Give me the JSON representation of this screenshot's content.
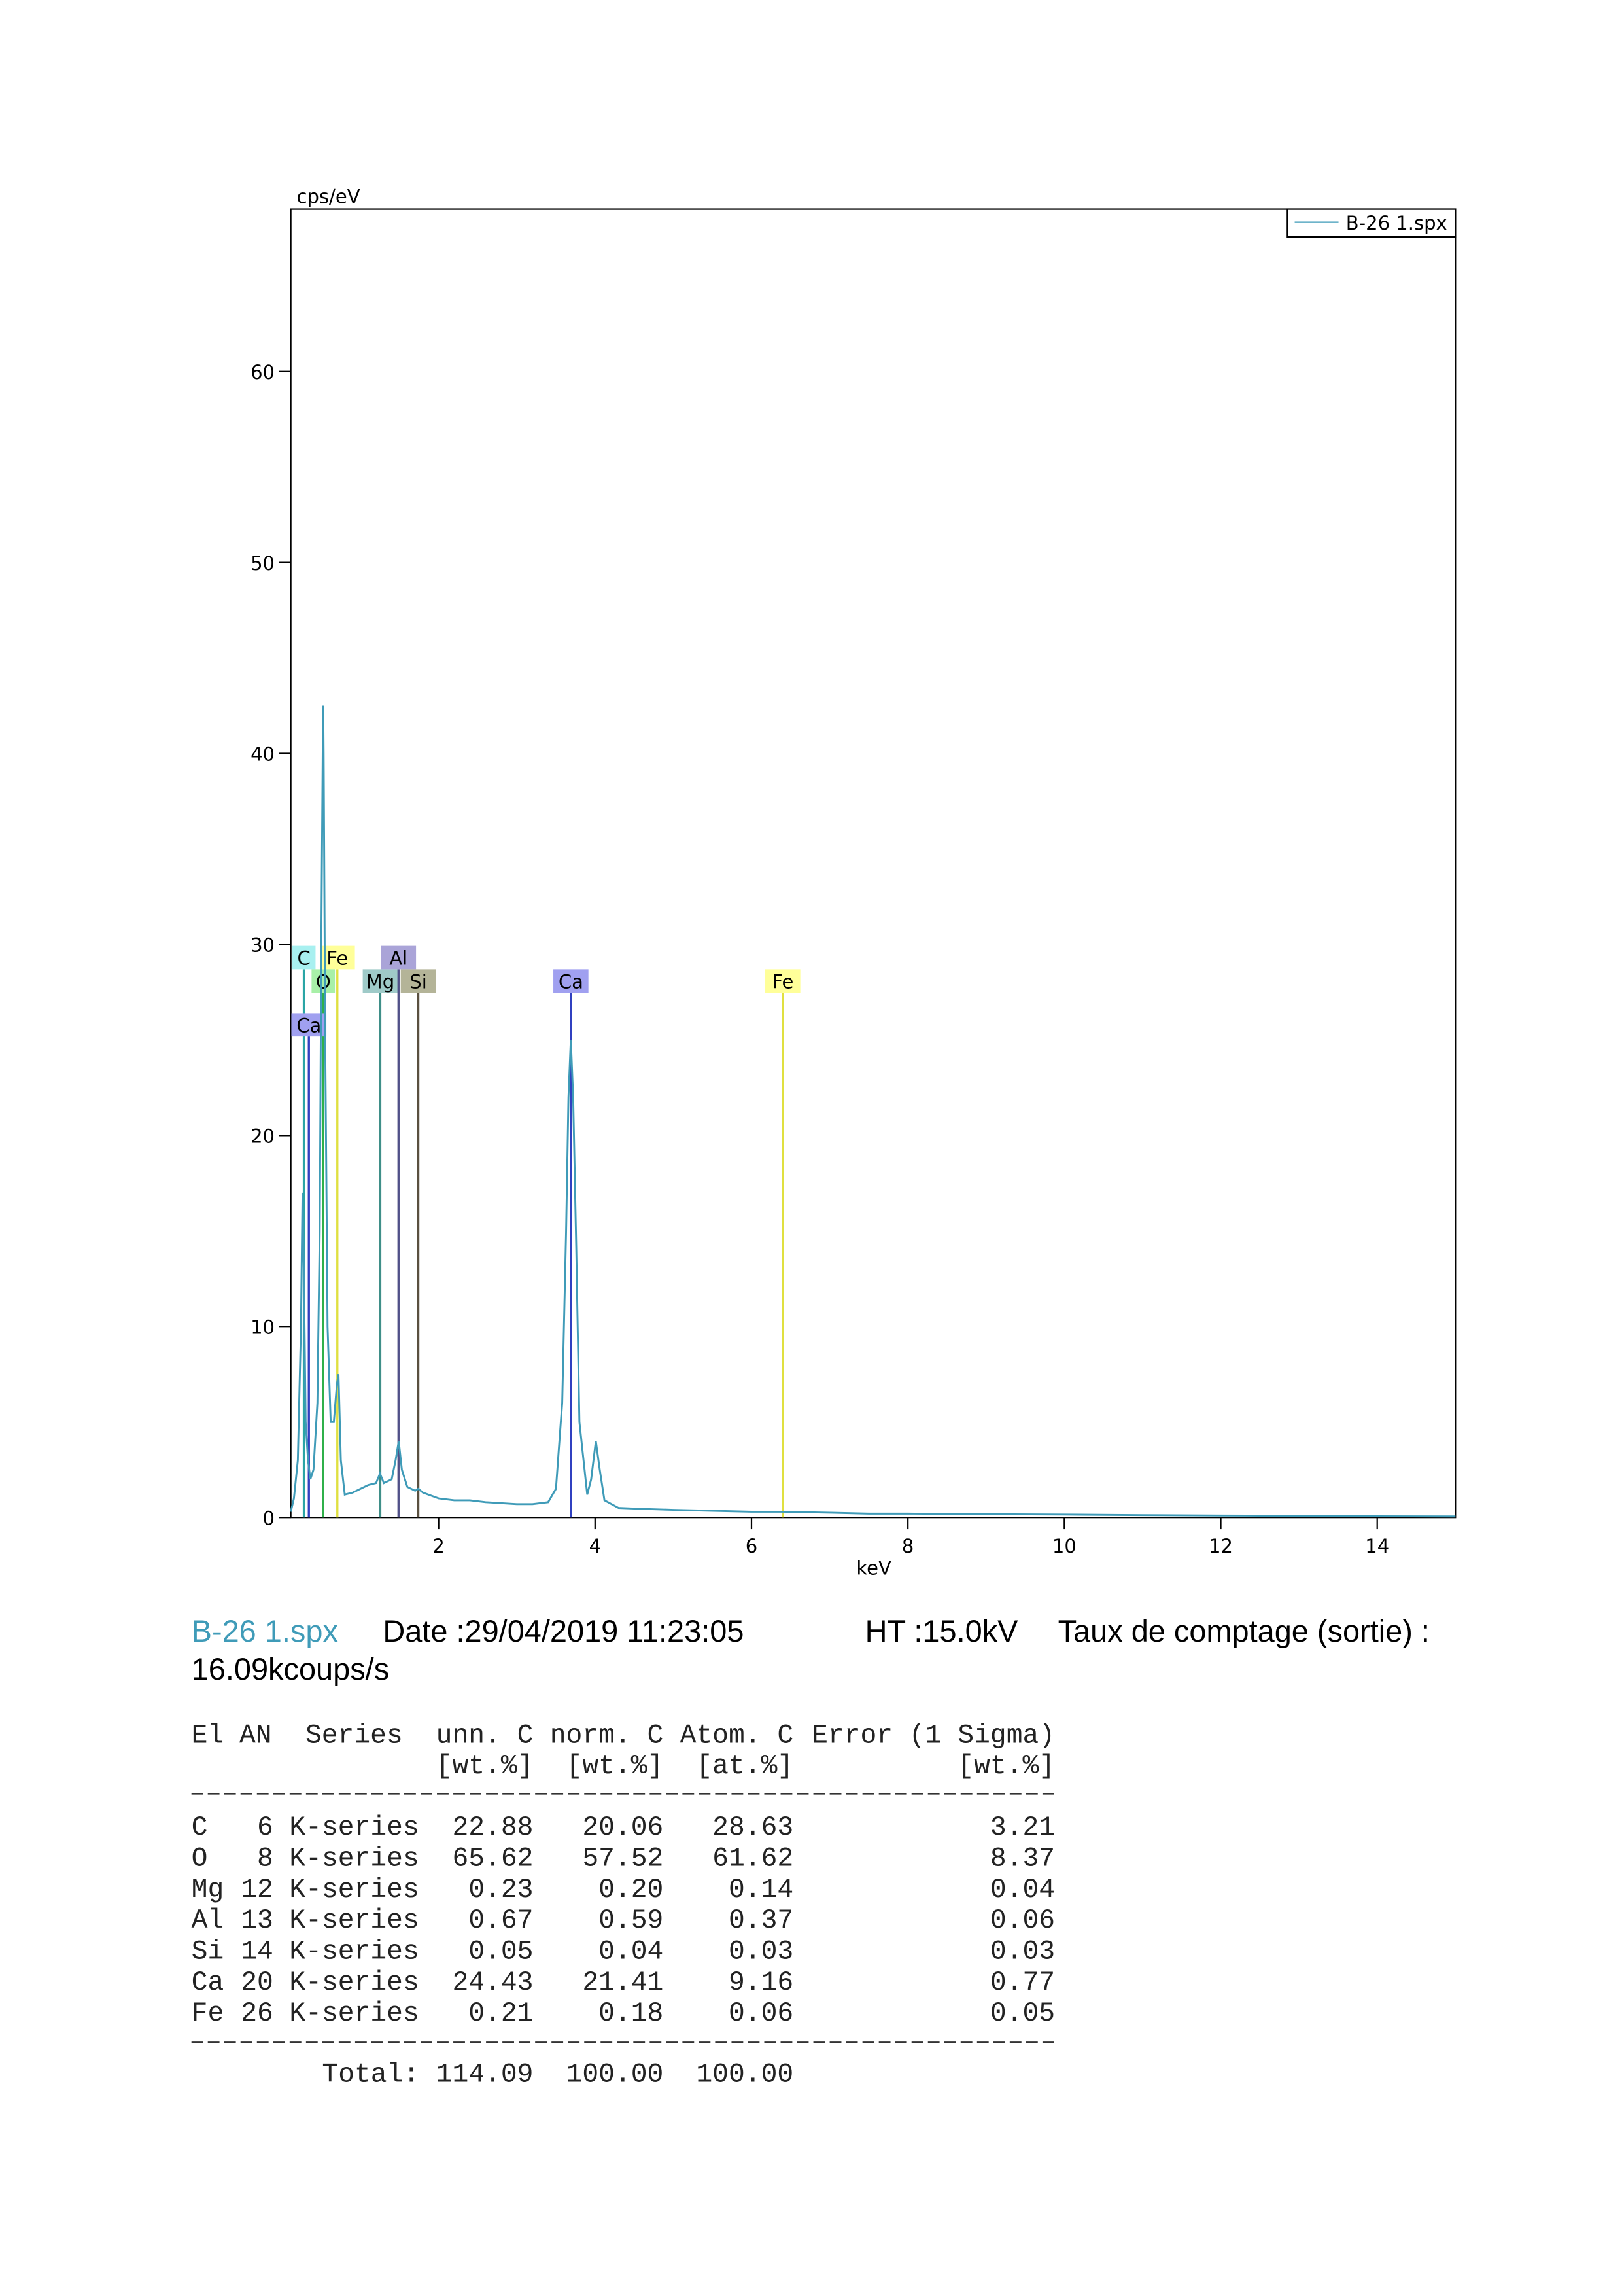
{
  "chart_data": {
    "type": "line",
    "x_label": "keV",
    "y_label": "cps/eV",
    "xlim": [
      0.11,
      15
    ],
    "ylim": [
      0,
      68.5
    ],
    "xticks": [
      2,
      4,
      6,
      8,
      10,
      12,
      14
    ],
    "yticks": [
      0,
      10,
      20,
      30,
      40,
      50,
      60
    ],
    "legend": "top-right",
    "x": [
      0.11,
      0.15,
      0.2,
      0.24,
      0.26,
      0.28,
      0.3,
      0.33,
      0.36,
      0.4,
      0.45,
      0.48,
      0.5,
      0.52,
      0.525,
      0.53,
      0.55,
      0.58,
      0.62,
      0.66,
      0.7,
      0.72,
      0.75,
      0.8,
      0.9,
      1.0,
      1.1,
      1.2,
      1.25,
      1.3,
      1.4,
      1.45,
      1.49,
      1.53,
      1.6,
      1.7,
      1.74,
      1.8,
      2.0,
      2.2,
      2.4,
      2.6,
      2.8,
      3.0,
      3.2,
      3.4,
      3.5,
      3.58,
      3.63,
      3.66,
      3.69,
      3.72,
      3.76,
      3.8,
      3.9,
      3.95,
      4.01,
      4.06,
      4.12,
      4.3,
      4.6,
      5.0,
      5.5,
      6.0,
      6.4,
      7.0,
      7.5,
      8.0,
      9.0,
      10.0,
      11,
      12,
      13,
      14,
      15
    ],
    "series": [
      {
        "name": "B-26 1.spx",
        "color": "#3f9bb8",
        "values": [
          0.3,
          1,
          3,
          10,
          17,
          12,
          5,
          3,
          2,
          2.5,
          6,
          15,
          30,
          41,
          42.5,
          40,
          25,
          10,
          5,
          5,
          7,
          7.5,
          3,
          1.2,
          1.3,
          1.5,
          1.7,
          1.8,
          2.3,
          1.8,
          2.0,
          3,
          4,
          2.5,
          1.6,
          1.4,
          1.5,
          1.3,
          1.0,
          0.9,
          0.9,
          0.8,
          0.75,
          0.7,
          0.7,
          0.8,
          1.5,
          6,
          15,
          22,
          25,
          22,
          14,
          5,
          1.2,
          2,
          4,
          2.5,
          0.9,
          0.5,
          0.45,
          0.4,
          0.35,
          0.3,
          0.3,
          0.25,
          0.2,
          0.2,
          0.17,
          0.15,
          0.12,
          0.1,
          0.08,
          0.06,
          0.05
        ]
      }
    ],
    "markers": [
      {
        "label": "C",
        "energy": 0.277,
        "color": "#2aa5a5",
        "fill": "#a8f0f0"
      },
      {
        "label": "Fe",
        "energy": 0.705,
        "color": "#e0e040",
        "fill": "#ffff99"
      },
      {
        "label": "O",
        "energy": 0.525,
        "color": "#2fb04a",
        "fill": "#a8f0a8"
      },
      {
        "label": "Mg",
        "energy": 1.254,
        "color": "#3f8f88",
        "fill": "#9fcac8"
      },
      {
        "label": "Al",
        "energy": 1.487,
        "color": "#505088",
        "fill": "#aaa4d8"
      },
      {
        "label": "Si",
        "energy": 1.74,
        "color": "#5a5040",
        "fill": "#b4b498"
      },
      {
        "label": "Ca",
        "energy": 0.341,
        "color": "#3040c0",
        "fill": "#a0a0f0"
      },
      {
        "label": "Ca",
        "energy": 3.691,
        "color": "#3040c0",
        "fill": "#a0a0f0"
      },
      {
        "label": "Fe",
        "energy": 6.4,
        "color": "#e0e040",
        "fill": "#ffff99"
      }
    ]
  },
  "info": {
    "date": "Date :29/04/2019 11:23:05",
    "ht": "HT :15.0kV",
    "rate_label": "Taux de comptage (sortie) :",
    "rate": "16.09kcoups/s"
  },
  "table": {
    "header": [
      "El",
      "AN",
      "Series",
      "unn. C",
      "norm. C",
      "Atom. C",
      "Error (1 Sigma)"
    ],
    "units": [
      "[wt.%]",
      "[wt.%]",
      "[at.%]",
      "[wt.%]"
    ],
    "rows": [
      [
        "C",
        "6",
        "K-series",
        "22.88",
        "20.06",
        "28.63",
        "3.21"
      ],
      [
        "O",
        "8",
        "K-series",
        "65.62",
        "57.52",
        "61.62",
        "8.37"
      ],
      [
        "Mg",
        "12",
        "K-series",
        "0.23",
        "0.20",
        "0.14",
        "0.04"
      ],
      [
        "Al",
        "13",
        "K-series",
        "0.67",
        "0.59",
        "0.37",
        "0.06"
      ],
      [
        "Si",
        "14",
        "K-series",
        "0.05",
        "0.04",
        "0.03",
        "0.03"
      ],
      [
        "Ca",
        "20",
        "K-series",
        "24.43",
        "21.41",
        "9.16",
        "0.77"
      ],
      [
        "Fe",
        "26",
        "K-series",
        "0.21",
        "0.18",
        "0.06",
        "0.05"
      ]
    ],
    "total": {
      "label": "Total:",
      "values": [
        "114.09",
        "100.00",
        "100.00"
      ]
    }
  }
}
